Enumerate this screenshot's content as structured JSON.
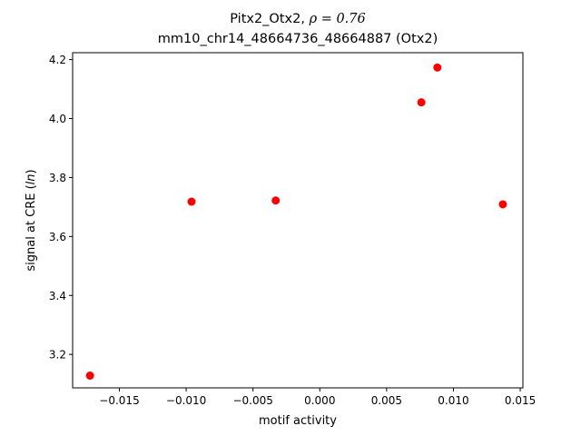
{
  "chart_data": {
    "type": "scatter",
    "title_prefix": "Pitx2_Otx2, ",
    "title_rho": "ρ = 0.76",
    "subtitle": "mm10_chr14_48664736_48664887 (Otx2)",
    "xlabel": "motif activity",
    "ylabel_prefix": "signal at CRE (",
    "ylabel_italic": "ln",
    "ylabel_suffix": ")",
    "xlim": [
      -0.0185,
      0.0152
    ],
    "ylim": [
      3.0866,
      4.2234
    ],
    "xticks": [
      -0.015,
      -0.01,
      -0.005,
      0.0,
      0.005,
      0.01,
      0.015
    ],
    "xtick_labels": [
      "−0.015",
      "−0.010",
      "−0.005",
      "0.000",
      "0.005",
      "0.010",
      "0.015"
    ],
    "yticks": [
      3.2,
      3.4,
      3.6,
      3.8,
      4.0,
      4.2
    ],
    "ytick_labels": [
      "3.2",
      "3.4",
      "3.6",
      "3.8",
      "4.0",
      "4.2"
    ],
    "grid": false,
    "marker_color": "#ff0000",
    "points": [
      {
        "x": -0.0172,
        "y": 3.128
      },
      {
        "x": -0.0096,
        "y": 3.718
      },
      {
        "x": -0.0033,
        "y": 3.722
      },
      {
        "x": 0.0076,
        "y": 4.055
      },
      {
        "x": 0.0088,
        "y": 4.173
      },
      {
        "x": 0.0137,
        "y": 3.709
      }
    ]
  }
}
